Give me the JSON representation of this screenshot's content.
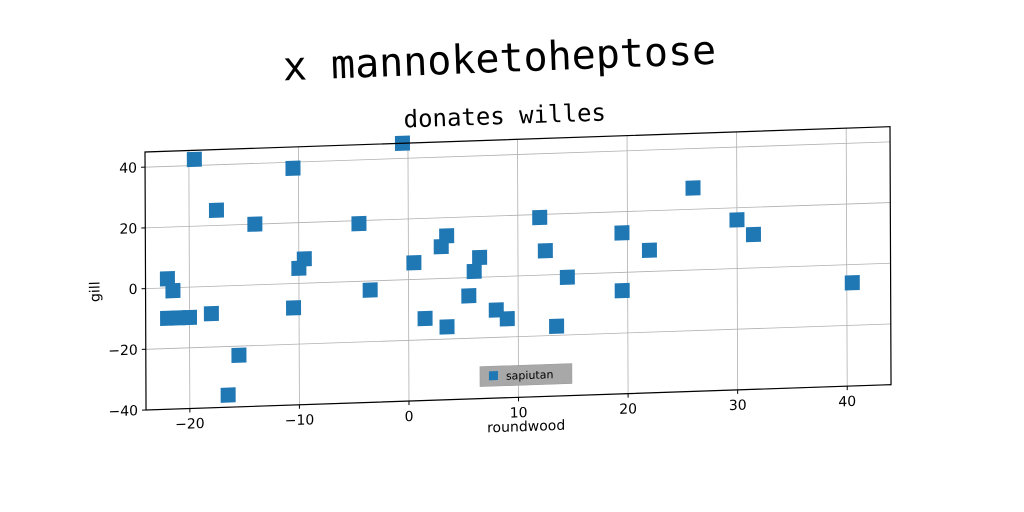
{
  "chart_data": {
    "type": "scatter",
    "title": "x mannoketoheptose",
    "subtitle": "donates willes",
    "xlabel": "roundwood",
    "ylabel": "gill",
    "xlim": [
      -24,
      44
    ],
    "ylim": [
      -40,
      45
    ],
    "xticks": [
      -20,
      -10,
      0,
      10,
      20,
      30,
      40
    ],
    "yticks": [
      -40,
      -20,
      0,
      20,
      40
    ],
    "xtick_labels": [
      "−20",
      "−10",
      "0",
      "10",
      "20",
      "30",
      "40"
    ],
    "ytick_labels": [
      "−40",
      "−20",
      "0",
      "20",
      "40"
    ],
    "grid": true,
    "legend_position": "bottom-center",
    "series": [
      {
        "name": "sapiutan",
        "color": "#1f77b4",
        "marker": "square",
        "points": [
          [
            -19.5,
            42
          ],
          [
            -0.5,
            45
          ],
          [
            -10.5,
            38
          ],
          [
            -17.5,
            25
          ],
          [
            -14,
            20
          ],
          [
            -4.5,
            19
          ],
          [
            -22,
            3
          ],
          [
            -21.5,
            -1
          ],
          [
            -10,
            5
          ],
          [
            -9.5,
            8
          ],
          [
            -22,
            -10
          ],
          [
            -21,
            -10
          ],
          [
            -20,
            -10
          ],
          [
            -18,
            -9
          ],
          [
            -10.5,
            -8
          ],
          [
            -15.5,
            -23
          ],
          [
            -16.5,
            -36
          ],
          [
            -3.5,
            -3
          ],
          [
            0.5,
            5.5
          ],
          [
            3,
            10.5
          ],
          [
            3.5,
            14
          ],
          [
            6,
            2
          ],
          [
            6.5,
            6.5
          ],
          [
            5.5,
            -6
          ],
          [
            1.5,
            -13
          ],
          [
            3.5,
            -16
          ],
          [
            8,
            -11
          ],
          [
            9,
            -14
          ],
          [
            12,
            19
          ],
          [
            12.5,
            8
          ],
          [
            14.5,
            -1
          ],
          [
            13.5,
            -17
          ],
          [
            19.5,
            13
          ],
          [
            22,
            7
          ],
          [
            19.5,
            -6
          ],
          [
            26,
            27
          ],
          [
            30,
            16
          ],
          [
            31.5,
            11
          ],
          [
            40.5,
            -6
          ]
        ]
      }
    ]
  }
}
